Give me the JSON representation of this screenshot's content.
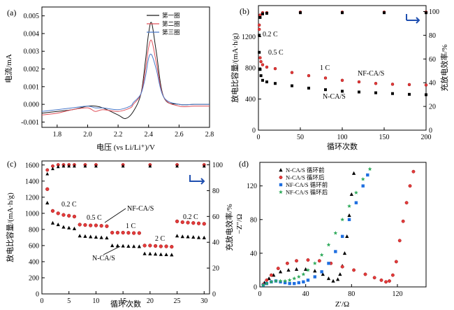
{
  "panels": {
    "a": {
      "label": "(a)",
      "xlabel": "电压 (vs Li/Li⁺)/V",
      "ylabel": "电流/mA",
      "xlim": [
        1.7,
        2.8
      ],
      "ylim": [
        -0.0013,
        0.0055
      ],
      "xticks": [
        "1.8",
        "2.0",
        "2.2",
        "2.4",
        "2.6",
        "2.8"
      ],
      "yticks": [
        "-0.001",
        "0.000",
        "0.001",
        "0.002",
        "0.003",
        "0.004",
        "0.005"
      ],
      "legend": [
        "第一圈",
        "第二圈",
        "第三圈"
      ]
    },
    "b": {
      "label": "(b)",
      "xlabel": "循环次数",
      "ylabel": "放电比容量/(mA·h/g)",
      "ylabel_right": "充放电效率/%",
      "xticks": [
        "0",
        "50",
        "100",
        "150",
        "200"
      ],
      "yticks": [
        "0",
        "400",
        "800",
        "1200"
      ],
      "yticks_right": [
        "0",
        "20",
        "40",
        "60",
        "80",
        "100"
      ],
      "annotations": [
        "0.2 C",
        "0.5 C",
        "1 C",
        "NF-CA/S",
        "N-CA/S"
      ]
    },
    "c": {
      "label": "(c)",
      "xlabel": "循环次数",
      "ylabel": "放电比容量/(mA·h/g)",
      "ylabel_right": "充放电效率/%",
      "xticks": [
        "0",
        "5",
        "10",
        "15",
        "20",
        "25",
        "30"
      ],
      "yticks": [
        "0",
        "200",
        "400",
        "600",
        "800",
        "1000",
        "1200",
        "1400",
        "1600"
      ],
      "yticks_right": [
        "0",
        "20",
        "40",
        "60",
        "80",
        "100"
      ],
      "annotations": [
        "0.2 C",
        "0.5 C",
        "1 C",
        "2 C",
        "0.2 C",
        "NF-CA/S",
        "N-CA/S"
      ]
    },
    "d": {
      "label": "(d)",
      "xlabel": "Z′/Ω",
      "ylabel": "−Z″/Ω",
      "xticks": [
        "0",
        "40",
        "80",
        "120"
      ],
      "yticks": [
        "0",
        "40",
        "80",
        "120"
      ],
      "legend": [
        "N-CA/S 循环前",
        "N-CA/S 循环后",
        "NF-CA/S 循环前",
        "NF-CA/S 循环后"
      ]
    }
  },
  "colors": {
    "cycle1": "#1a1a1a",
    "cycle2": "#e0505a",
    "cycle3": "#4a78c8",
    "nca": "#000000",
    "nfca": "#e33b3b",
    "ncaBlue": "#1f6fe0",
    "nfcaGreen": "#2eaa5a",
    "arrowBlue": "#1f4fb0"
  },
  "chart_data": [
    {
      "type": "line",
      "panel": "a",
      "series": [
        {
          "name": "第一圈",
          "x": [
            1.7,
            1.8,
            1.9,
            2.0,
            2.05,
            2.1,
            2.2,
            2.25,
            2.3,
            2.35,
            2.38,
            2.4,
            2.42,
            2.45,
            2.5,
            2.6,
            2.7,
            2.8
          ],
          "y": [
            -0.0005,
            -0.0004,
            -0.0003,
            -0.0001,
            -0.0001,
            -0.0002,
            -0.0006,
            -0.0008,
            -0.0004,
            0.0006,
            0.0025,
            0.004,
            0.0046,
            0.003,
            0.0004,
            0.0,
            0.0,
            0.0
          ]
        },
        {
          "name": "第二圈",
          "x": [
            1.7,
            1.8,
            1.9,
            2.0,
            2.05,
            2.1,
            2.2,
            2.28,
            2.3,
            2.35,
            2.38,
            2.4,
            2.42,
            2.45,
            2.5,
            2.6,
            2.7,
            2.8
          ],
          "y": [
            -0.0006,
            -0.0005,
            -0.0003,
            -0.0002,
            -0.0004,
            -0.0003,
            -0.0004,
            -0.0002,
            0.0,
            0.0006,
            0.002,
            0.0032,
            0.0036,
            0.0024,
            0.0004,
            -0.0001,
            -0.0001,
            -0.0001
          ]
        },
        {
          "name": "第三圈",
          "x": [
            1.7,
            1.8,
            1.9,
            2.0,
            2.05,
            2.1,
            2.2,
            2.28,
            2.3,
            2.35,
            2.38,
            2.4,
            2.42,
            2.45,
            2.5,
            2.6,
            2.7,
            2.8
          ],
          "y": [
            -0.0004,
            -0.0003,
            -0.0002,
            -0.0001,
            -0.0002,
            -0.0002,
            -0.0003,
            -0.0001,
            0.0001,
            0.0006,
            0.0016,
            0.0026,
            0.0028,
            0.002,
            0.0004,
            0.0,
            0.0,
            0.0
          ]
        }
      ]
    },
    {
      "type": "scatter",
      "panel": "b",
      "xlim": [
        0,
        200
      ],
      "ylim": [
        0,
        1600
      ],
      "y2lim": [
        0,
        105
      ],
      "series": [
        {
          "name": "NF-CA/S",
          "x": [
            1,
            2,
            3,
            5,
            10,
            20,
            40,
            60,
            80,
            100,
            120,
            140,
            160,
            180,
            200
          ],
          "y": [
            1350,
            930,
            880,
            840,
            810,
            790,
            740,
            700,
            670,
            640,
            620,
            600,
            590,
            585,
            580
          ]
        },
        {
          "name": "N-CA/S",
          "x": [
            1,
            2,
            3,
            5,
            10,
            20,
            40,
            60,
            80,
            100,
            120,
            140,
            160,
            180,
            200
          ],
          "y": [
            1000,
            780,
            700,
            640,
            620,
            600,
            570,
            540,
            520,
            500,
            490,
            480,
            470,
            460,
            455
          ]
        },
        {
          "name": "NF-CA/S 效率",
          "x": [
            1,
            2,
            5,
            10,
            50,
            100,
            150,
            200
          ],
          "y": [
            85,
            97,
            99,
            99,
            99.5,
            99.5,
            99.5,
            99.5
          ]
        },
        {
          "name": "N-CA/S 效率",
          "x": [
            1,
            2,
            5,
            10,
            50,
            100,
            150,
            200
          ],
          "y": [
            80,
            95,
            98,
            98.5,
            99,
            99,
            99,
            99
          ]
        }
      ]
    },
    {
      "type": "scatter",
      "panel": "c",
      "xlim": [
        0,
        31
      ],
      "ylim": [
        0,
        1650
      ],
      "y2lim": [
        0,
        103
      ],
      "series": [
        {
          "name": "NF-CA/S",
          "x": [
            1,
            2,
            3,
            4,
            5,
            6,
            7,
            8,
            9,
            10,
            11,
            12,
            13,
            14,
            15,
            16,
            17,
            18,
            19,
            20,
            21,
            22,
            23,
            24,
            25,
            26,
            27,
            28,
            29,
            30
          ],
          "y": [
            1300,
            1030,
            1000,
            980,
            970,
            960,
            860,
            855,
            850,
            850,
            845,
            840,
            760,
            760,
            760,
            758,
            755,
            755,
            600,
            600,
            595,
            590,
            590,
            585,
            900,
            890,
            885,
            880,
            875,
            870
          ]
        },
        {
          "name": "N-CA/S",
          "x": [
            1,
            2,
            3,
            4,
            5,
            6,
            7,
            8,
            9,
            10,
            11,
            12,
            13,
            14,
            15,
            16,
            17,
            18,
            19,
            20,
            21,
            22,
            23,
            24,
            25,
            26,
            27,
            28,
            29,
            30
          ],
          "y": [
            1130,
            880,
            860,
            830,
            820,
            810,
            720,
            715,
            710,
            705,
            700,
            695,
            600,
            598,
            595,
            592,
            590,
            588,
            500,
            498,
            495,
            490,
            488,
            485,
            720,
            712,
            710,
            705,
            700,
            698
          ]
        },
        {
          "name": "NF-CA/S 效率",
          "x": [
            1,
            2,
            3,
            4,
            5,
            6,
            8,
            10,
            15,
            20,
            25,
            30
          ],
          "y": [
            96,
            99,
            100,
            100,
            100,
            100,
            100,
            100,
            100,
            100,
            100,
            100
          ]
        },
        {
          "name": "N-CA/S 效率",
          "x": [
            1,
            2,
            3,
            4,
            5,
            6,
            8,
            10,
            15,
            20,
            25,
            30
          ],
          "y": [
            93,
            97,
            98.5,
            99,
            99,
            99,
            99,
            99,
            99,
            99,
            99,
            99
          ]
        }
      ]
    },
    {
      "type": "scatter",
      "panel": "d",
      "xlim": [
        0,
        145
      ],
      "ylim": [
        0,
        148
      ],
      "series": [
        {
          "name": "N-CA/S 循环前",
          "x": [
            4,
            8,
            12,
            18,
            25,
            32,
            40,
            48,
            55,
            60,
            64,
            68,
            70,
            72,
            74,
            76,
            78,
            80,
            82
          ],
          "y": [
            5,
            10,
            14,
            18,
            20,
            21,
            21,
            19,
            15,
            10,
            7,
            9,
            15,
            25,
            40,
            60,
            85,
            110,
            135
          ]
        },
        {
          "name": "N-CA/S 循环后",
          "x": [
            3,
            6,
            10,
            16,
            24,
            32,
            42,
            52,
            62,
            72,
            82,
            92,
            100,
            106,
            110,
            113,
            116,
            119,
            122,
            125,
            128,
            131,
            134
          ],
          "y": [
            3,
            8,
            14,
            22,
            28,
            31,
            32,
            31,
            28,
            24,
            20,
            15,
            11,
            8,
            6,
            7,
            14,
            30,
            55,
            78,
            100,
            120,
            137
          ]
        },
        {
          "name": "NF-CA/S 循环前",
          "x": [
            3,
            6,
            10,
            14,
            18,
            22,
            26,
            30,
            34,
            38,
            42,
            48,
            54,
            60,
            66,
            72,
            78,
            84,
            90,
            94
          ],
          "y": [
            2,
            4,
            6,
            7,
            6,
            5,
            4,
            4,
            5,
            6,
            8,
            12,
            18,
            28,
            42,
            60,
            80,
            100,
            120,
            133
          ]
        },
        {
          "name": "NF-CA/S 循环后",
          "x": [
            3,
            6,
            10,
            14,
            18,
            22,
            26,
            30,
            34,
            38,
            42,
            48,
            54,
            60,
            66,
            72,
            78,
            84,
            90,
            96
          ],
          "y": [
            2,
            4,
            6,
            7,
            7,
            7,
            8,
            10,
            12,
            15,
            20,
            28,
            38,
            50,
            64,
            80,
            96,
            112,
            128,
            140
          ]
        }
      ]
    }
  ]
}
